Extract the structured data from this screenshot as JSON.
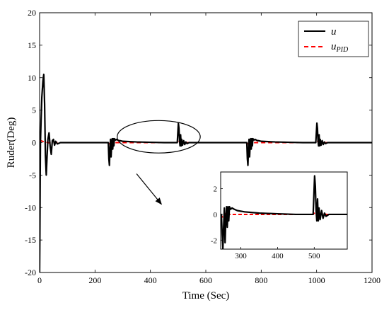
{
  "chart_data": [
    {
      "type": "line",
      "xlabel": "Time (Sec)",
      "ylabel": "Ruder(Deg)",
      "xlim": [
        0,
        1200
      ],
      "ylim": [
        -20,
        20
      ],
      "xticks": [
        0,
        200,
        400,
        600,
        800,
        1000,
        1200
      ],
      "yticks": [
        -20,
        -15,
        -10,
        -5,
        0,
        5,
        10,
        15,
        20
      ],
      "legend": {
        "placement": "top-right",
        "entries": [
          {
            "main": "u",
            "sub": ""
          },
          {
            "main": "u",
            "sub": "PID"
          }
        ]
      },
      "series": [
        {
          "name": "u",
          "color": "#000000",
          "style": "solid",
          "x": [
            0,
            1,
            2,
            3,
            5,
            8,
            12,
            15,
            18,
            21,
            24,
            27,
            30,
            34,
            38,
            42,
            46,
            50,
            54,
            58,
            64,
            75,
            100,
            150,
            200,
            248,
            250,
            252,
            254,
            256,
            258,
            260,
            262,
            264,
            266,
            268,
            270,
            274,
            278,
            282,
            286,
            290,
            300,
            350,
            400,
            450,
            497,
            499,
            501,
            503,
            505,
            507,
            509,
            511,
            513,
            516,
            520,
            524,
            528,
            532,
            540,
            560,
            600,
            650,
            700,
            748,
            750,
            752,
            754,
            756,
            758,
            760,
            762,
            764,
            766,
            768,
            770,
            774,
            778,
            782,
            786,
            790,
            800,
            850,
            900,
            950,
            997,
            999,
            1001,
            1003,
            1005,
            1007,
            1009,
            1011,
            1013,
            1016,
            1020,
            1024,
            1028,
            1032,
            1040,
            1060,
            1100,
            1150,
            1200
          ],
          "y": [
            -20,
            -14,
            -6,
            0,
            3,
            7,
            9.5,
            10.5,
            6,
            -2,
            -5,
            -2,
            0.5,
            1.5,
            -0.5,
            -1.8,
            0.3,
            0.5,
            -0.4,
            0.2,
            -0.2,
            0,
            0,
            0,
            0,
            0,
            -2.5,
            -3.5,
            -1,
            0.5,
            -2.2,
            -0.4,
            0.6,
            -1,
            0.6,
            -0.5,
            0.6,
            0.4,
            0.5,
            0.4,
            0.3,
            0.3,
            0.2,
            0.1,
            0.05,
            0,
            0,
            1.5,
            3,
            2.2,
            0.3,
            -0.5,
            1.2,
            -0.5,
            0.5,
            -0.4,
            0.3,
            -0.3,
            0.1,
            -0.15,
            0,
            0,
            0,
            0,
            0,
            0,
            -2.5,
            -3.5,
            -1,
            0.5,
            -2.2,
            -0.4,
            0.6,
            -1,
            0.6,
            -0.5,
            0.6,
            0.4,
            0.5,
            0.4,
            0.3,
            0.3,
            0.2,
            0.1,
            0.05,
            0,
            0,
            1.5,
            3,
            2.2,
            0.3,
            -0.5,
            1.2,
            -0.5,
            0.5,
            -0.4,
            0.3,
            -0.3,
            0.1,
            -0.15,
            0,
            0,
            0,
            0,
            0
          ]
        },
        {
          "name": "u_PID",
          "color": "#ff0000",
          "style": "dashed",
          "x": [
            0,
            5,
            10,
            20,
            30,
            45,
            60,
            100,
            248,
            252,
            258,
            270,
            300,
            497,
            503,
            510,
            525,
            560,
            748,
            752,
            758,
            770,
            800,
            997,
            1003,
            1010,
            1025,
            1060,
            1200
          ],
          "y": [
            0.3,
            0.3,
            0.2,
            0.1,
            0,
            -0.1,
            0,
            0,
            0,
            -0.2,
            0.1,
            0,
            0,
            0,
            0.2,
            -0.1,
            0,
            0,
            0,
            -0.2,
            0.1,
            0,
            0,
            0,
            0.2,
            -0.1,
            0,
            0,
            0
          ]
        }
      ],
      "annotations": [
        {
          "type": "ellipse",
          "x_range": [
            280,
            580
          ],
          "y_range": [
            -1.6,
            3.4
          ]
        },
        {
          "type": "arrow",
          "from": [
            350,
            -4.8
          ],
          "to": [
            440,
            -9.5
          ]
        }
      ]
    },
    {
      "type": "line",
      "xlim": [
        245,
        590
      ],
      "ylim": [
        -2.7,
        3.3
      ],
      "xticks": [
        300,
        400,
        500
      ],
      "yticks": [
        -2,
        0,
        2
      ],
      "series": [
        {
          "name": "",
          "color": "#000000",
          "style": "solid",
          "x": [
            245,
            247,
            249,
            251,
            253,
            255,
            257,
            259,
            261,
            263,
            265,
            267,
            269,
            272,
            276,
            282,
            290,
            310,
            350,
            400,
            450,
            497,
            499,
            501,
            503,
            505,
            507,
            509,
            511,
            513,
            516,
            520,
            524,
            528,
            532,
            540,
            560,
            590
          ],
          "y": [
            0,
            0,
            -1.5,
            -2.7,
            -1,
            0.5,
            -2.2,
            -0.4,
            0.6,
            -1,
            0.6,
            -0.5,
            0.6,
            0.4,
            0.5,
            0.4,
            0.3,
            0.2,
            0.1,
            0.05,
            0,
            0,
            1.5,
            3,
            2.2,
            0.3,
            -0.5,
            1.2,
            -0.5,
            0.5,
            -0.4,
            0.3,
            -0.3,
            0.1,
            -0.15,
            0,
            0,
            0
          ]
        },
        {
          "name": "",
          "color": "#ff0000",
          "style": "dashed",
          "x": [
            245,
            250,
            256,
            262,
            270,
            300,
            497,
            503,
            510,
            520,
            535,
            560,
            590
          ],
          "y": [
            0,
            -0.2,
            0.1,
            -0.1,
            0,
            0,
            0,
            0.2,
            -0.1,
            0.05,
            0,
            0,
            0
          ]
        }
      ]
    }
  ]
}
